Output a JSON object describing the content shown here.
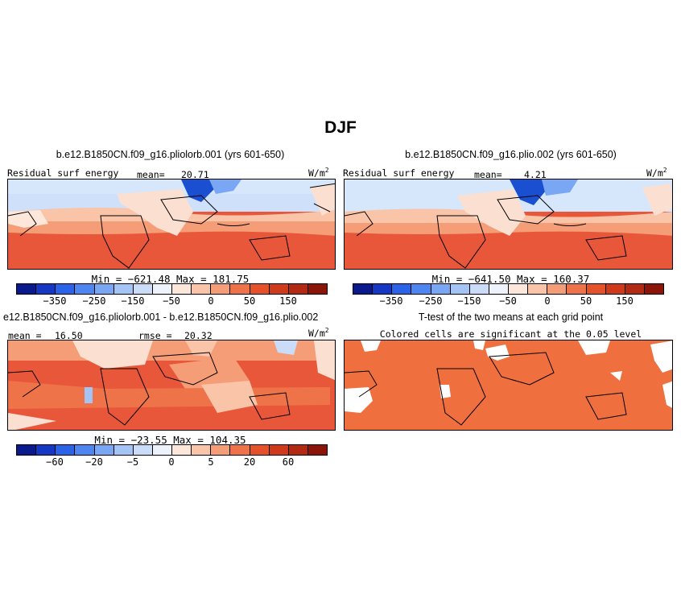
{
  "figure": {
    "season": "DJF",
    "colors": {
      "warm_fill": "#f06a3a",
      "warm_dark": "#e0471f",
      "cool_light": "#d6e6fb",
      "cool_mid": "#a8c6f4",
      "cool_dark": "#1b4fd1",
      "neutral": "#fbe0d2",
      "land_line": "#000000",
      "sig_fill": "#ef6f3e"
    }
  },
  "panel_a": {
    "title": "b.e12.B1850CN.f09_g16.pliolorb.001 (yrs 601-650)",
    "var_label": "Residual surf energy",
    "mean_label": "mean=",
    "mean_value": "20.71",
    "units": "W/m",
    "units_sup": "2",
    "minmax": "Min = −621.48 Max = 181.75",
    "cbar_ticks": [
      "−350",
      "−250",
      "−150",
      "−50",
      "0",
      "50",
      "150"
    ]
  },
  "panel_b": {
    "title": "b.e12.B1850CN.f09_g16.plio.002 (yrs 601-650)",
    "var_label": "Residual surf energy",
    "mean_label": "mean=",
    "mean_value": "4.21",
    "units": "W/m",
    "units_sup": "2",
    "minmax": "Min = −641.50 Max = 160.37",
    "cbar_ticks": [
      "−350",
      "−250",
      "−150",
      "−50",
      "0",
      "50",
      "150"
    ]
  },
  "panel_c": {
    "title": "e12.B1850CN.f09_g16.pliolorb.001 - b.e12.B1850CN.f09_g16.plio.002",
    "mean_text": "mean =",
    "mean_value": "16.50",
    "rmse_text": "rmse =",
    "rmse_value": "20.32",
    "units": "W/m",
    "units_sup": "2",
    "minmax": "Min = −23.55 Max = 104.35",
    "cbar_ticks": [
      "−60",
      "−20",
      "−5",
      "0",
      "5",
      "20",
      "60"
    ]
  },
  "panel_d": {
    "title": "T-test of the two means at each grid point",
    "subtitle": "Colored cells are significant at the 0.05 level"
  },
  "colorbar_colors": [
    "#0a1a8c",
    "#1537c4",
    "#2a62e8",
    "#4d86f0",
    "#7aa7f3",
    "#a5c4f6",
    "#cbdcf8",
    "#eef3fb",
    "#fde6da",
    "#f9c4a8",
    "#f59d76",
    "#ef7349",
    "#e5522a",
    "#cf3a1a",
    "#b22a12",
    "#8a1508"
  ]
}
